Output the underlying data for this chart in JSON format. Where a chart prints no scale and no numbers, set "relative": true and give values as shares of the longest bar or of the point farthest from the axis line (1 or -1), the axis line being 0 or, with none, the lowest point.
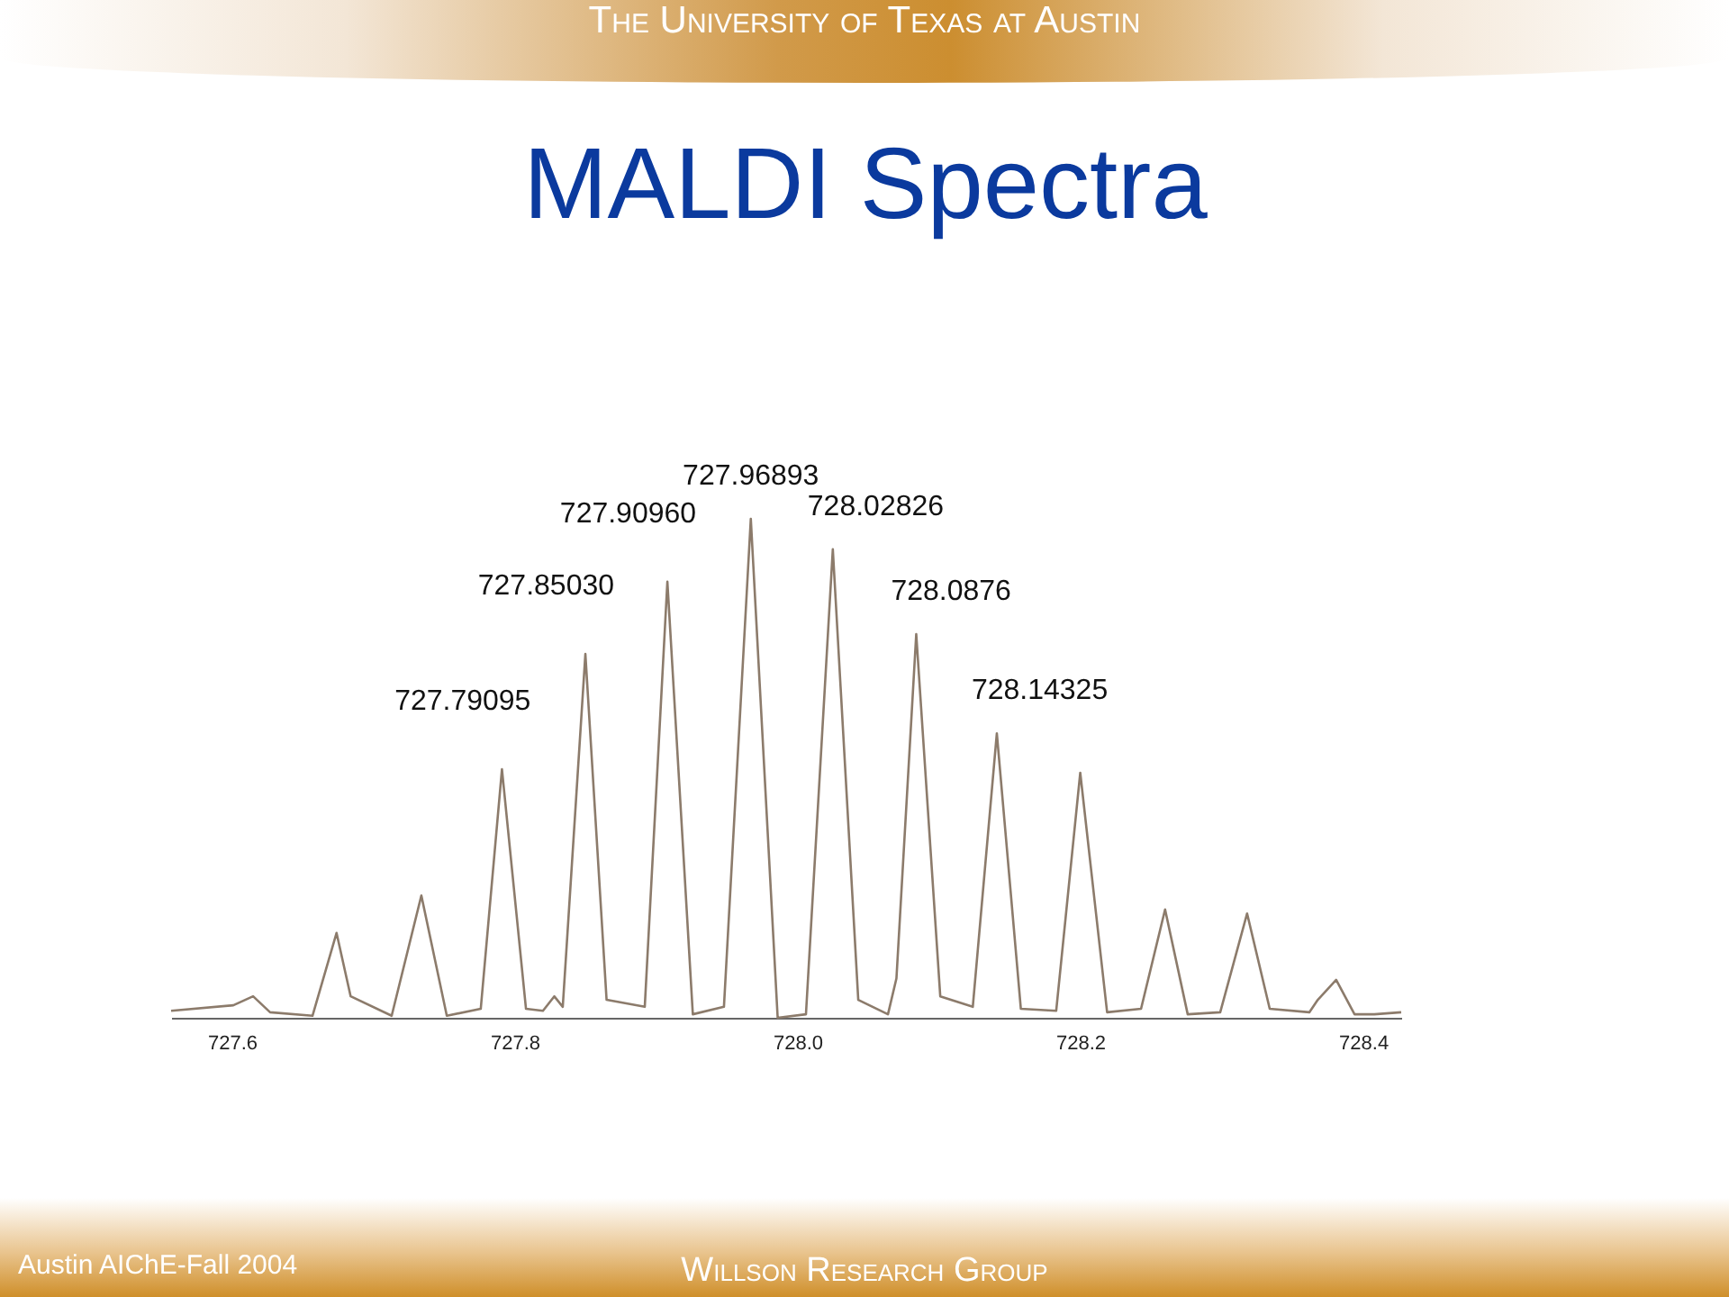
{
  "chart_data": {
    "type": "line",
    "title": "MALDI Spectra",
    "relative": true,
    "grid": false,
    "marker": "none",
    "line_style": "solid",
    "x": [
      727.557,
      727.601,
      727.615,
      727.627,
      727.657,
      727.674,
      727.684,
      727.713,
      727.734,
      727.752,
      727.776,
      727.791,
      727.808,
      727.82,
      727.828,
      727.834,
      727.85,
      727.865,
      727.892,
      727.908,
      727.926,
      727.948,
      727.967,
      727.986,
      728.006,
      728.025,
      728.043,
      728.064,
      728.07,
      728.084,
      728.101,
      728.124,
      728.141,
      728.158,
      728.183,
      728.2,
      728.219,
      728.243,
      728.26,
      728.276,
      728.299,
      728.318,
      728.334,
      728.362,
      728.368,
      728.381,
      728.394,
      728.408,
      728.427
    ],
    "series": [
      {
        "color": "#8c7b6b",
        "values": [
          0.014,
          0.025,
          0.043,
          0.011,
          0.004,
          0.17,
          0.043,
          0.004,
          0.245,
          0.004,
          0.018,
          0.498,
          0.018,
          0.014,
          0.043,
          0.022,
          0.729,
          0.036,
          0.022,
          0.874,
          0.007,
          0.022,
          1,
          0,
          0.007,
          0.939,
          0.036,
          0.007,
          0.079,
          0.769,
          0.043,
          0.022,
          0.57,
          0.018,
          0.014,
          0.491,
          0.011,
          0.018,
          0.217,
          0.007,
          0.011,
          0.209,
          0.018,
          0.011,
          0.036,
          0.076,
          0.007,
          0.007,
          0.011
        ]
      }
    ],
    "xlim": [
      727.557,
      728.427
    ],
    "xticks": [
      727.6,
      727.8,
      {
        "value": 728,
        "label": "728.0"
      },
      728.2,
      728.4
    ],
    "annotations": [
      "The University of Texas at Austin",
      "Willson Research Group",
      "Austin AIChE-Fall 2004",
      {
        "text": "727.79095",
        "x": 727.791,
        "y": 0.498
      },
      {
        "text": "727.85030",
        "x": 727.85,
        "y": 0.729
      },
      {
        "text": "727.90960",
        "x": 727.908,
        "y": 0.874
      },
      {
        "text": "727.96893",
        "x": 727.967,
        "y": 1
      },
      {
        "text": "728.02826",
        "x": 728.025,
        "y": 0.939
      },
      {
        "text": "728.0876",
        "x": 728.084,
        "y": 0.769
      },
      {
        "text": "728.14325",
        "x": 728.141,
        "y": 0.57
      }
    ]
  }
}
